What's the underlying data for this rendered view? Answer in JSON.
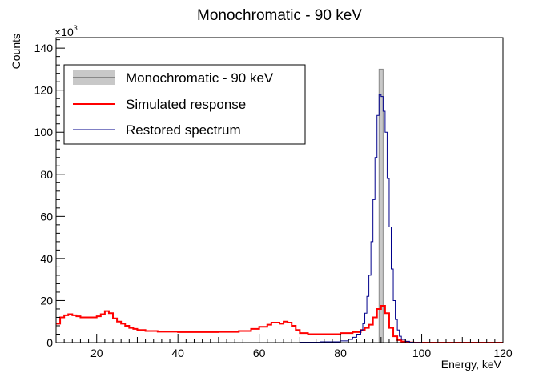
{
  "chart_data": {
    "type": "line",
    "title": "Monochromatic - 90 keV",
    "xlabel": "Energy, keV",
    "ylabel": "Counts",
    "y_multiplier_label": "×10",
    "y_multiplier_exponent": "3",
    "xlim": [
      10,
      120
    ],
    "ylim": [
      0,
      145
    ],
    "x_ticks": [
      20,
      40,
      60,
      80,
      100,
      120
    ],
    "y_ticks": [
      0,
      20,
      40,
      60,
      80,
      100,
      120,
      140
    ],
    "legend_position": "top-left",
    "series": [
      {
        "name": "Monochromatic - 90 keV",
        "style": "filled-bar",
        "color": "#c8c8c8",
        "edge_color": "#888888",
        "x": [
          89.5,
          90.5
        ],
        "y": [
          130,
          130
        ]
      },
      {
        "name": "Simulated response",
        "style": "step",
        "color": "#ff0000",
        "x": [
          10,
          11,
          12,
          13,
          14,
          15,
          16,
          17,
          18,
          19,
          20,
          21,
          22,
          23,
          24,
          25,
          26,
          27,
          28,
          29,
          30,
          32,
          35,
          40,
          45,
          50,
          55,
          58,
          60,
          62,
          63,
          64,
          65,
          66,
          67,
          68,
          69,
          70,
          72,
          75,
          80,
          83,
          85,
          86,
          87,
          88,
          89,
          90,
          91,
          92,
          93,
          94,
          95,
          96,
          97,
          98,
          100,
          105,
          110,
          120
        ],
        "y": [
          9,
          12,
          13,
          13.5,
          13,
          12.5,
          12,
          12,
          12,
          12,
          12.5,
          13.5,
          15,
          14,
          11.5,
          10,
          9,
          8,
          7,
          6.5,
          6,
          5.5,
          5.2,
          5,
          5,
          5.1,
          5.5,
          6.5,
          7.5,
          8.5,
          9.5,
          9.5,
          9,
          10,
          9.5,
          8,
          6,
          4.5,
          4,
          4,
          4.5,
          5,
          6,
          7,
          8.5,
          12,
          16,
          17.5,
          14,
          7,
          3,
          1.2,
          0.5,
          0.2,
          0.1,
          0,
          0,
          0,
          0,
          0
        ]
      },
      {
        "name": "Restored spectrum",
        "style": "step",
        "color": "#00008b",
        "x": [
          10,
          60,
          70,
          75,
          80,
          82,
          83,
          84,
          85,
          85.5,
          86,
          86.5,
          87,
          87.5,
          88,
          88.5,
          89,
          89.5,
          90,
          90.5,
          91,
          91.5,
          92,
          92.5,
          93,
          93.5,
          94,
          94.5,
          95,
          96,
          97,
          98,
          100,
          120
        ],
        "y": [
          0,
          0,
          0.2,
          0.4,
          0.8,
          1.5,
          2.5,
          4,
          6,
          9,
          14,
          22,
          32,
          48,
          68,
          88,
          108,
          118,
          117,
          110,
          100,
          78,
          55,
          35,
          20,
          11,
          6,
          3,
          1.5,
          0.6,
          0.2,
          0.1,
          0,
          0
        ]
      }
    ]
  }
}
